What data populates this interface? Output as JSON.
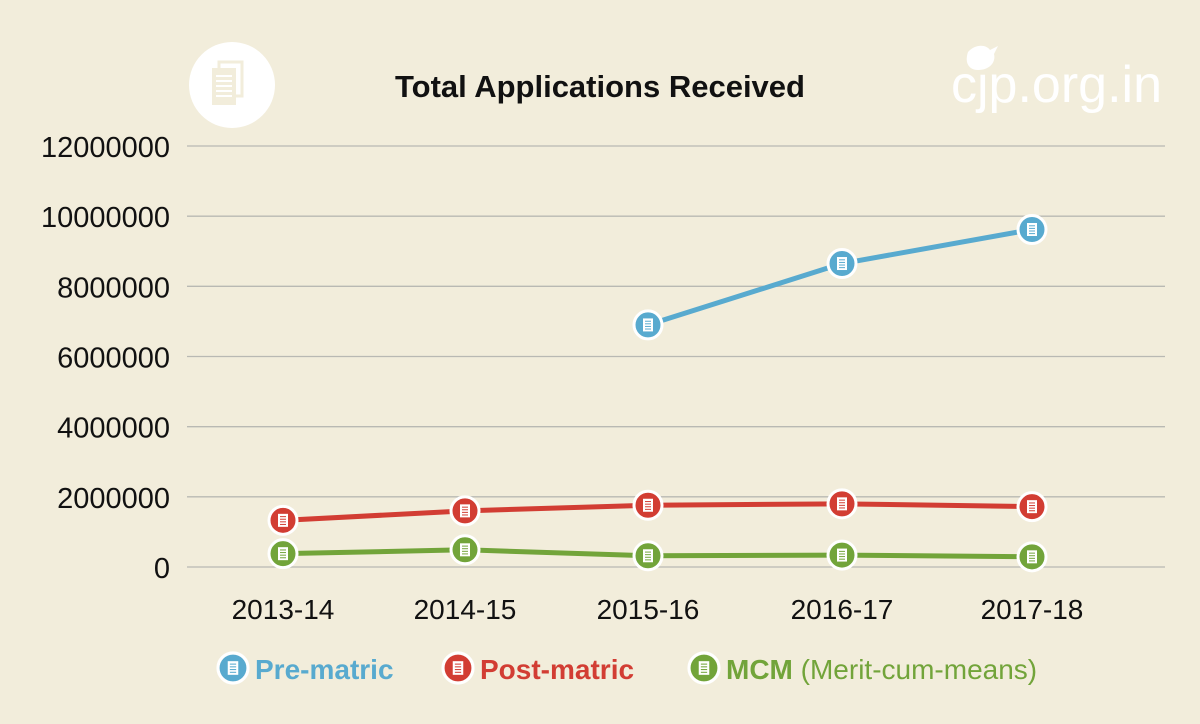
{
  "brand": {
    "logo_text": "cjp.org.in"
  },
  "colors": {
    "background": "#f2eddb",
    "grid": "#b9b9b3",
    "pre_matric": "#58aacf",
    "post_matric": "#d23d33",
    "mcm": "#72a43a"
  },
  "chart_data": {
    "type": "line",
    "title": "Total Applications Received",
    "categories": [
      "2013-14",
      "2014-15",
      "2015-16",
      "2016-17",
      "2017-18"
    ],
    "ylim": [
      0,
      12000000
    ],
    "yticks": [
      0,
      2000000,
      4000000,
      6000000,
      8000000,
      10000000,
      12000000
    ],
    "grid": true,
    "legend_position": "bottom",
    "marker_icon": "document-icon",
    "series": [
      {
        "name": "Pre-matric",
        "color": "#58aacf",
        "values": [
          null,
          null,
          6900000,
          8650000,
          9620000
        ]
      },
      {
        "name": "Post-matric",
        "color": "#d23d33",
        "values": [
          1330000,
          1600000,
          1760000,
          1800000,
          1720000
        ]
      },
      {
        "name": "MCM",
        "name_suffix": "(Merit-cum-means)",
        "color": "#72a43a",
        "values": [
          380000,
          490000,
          320000,
          340000,
          290000
        ]
      }
    ]
  }
}
